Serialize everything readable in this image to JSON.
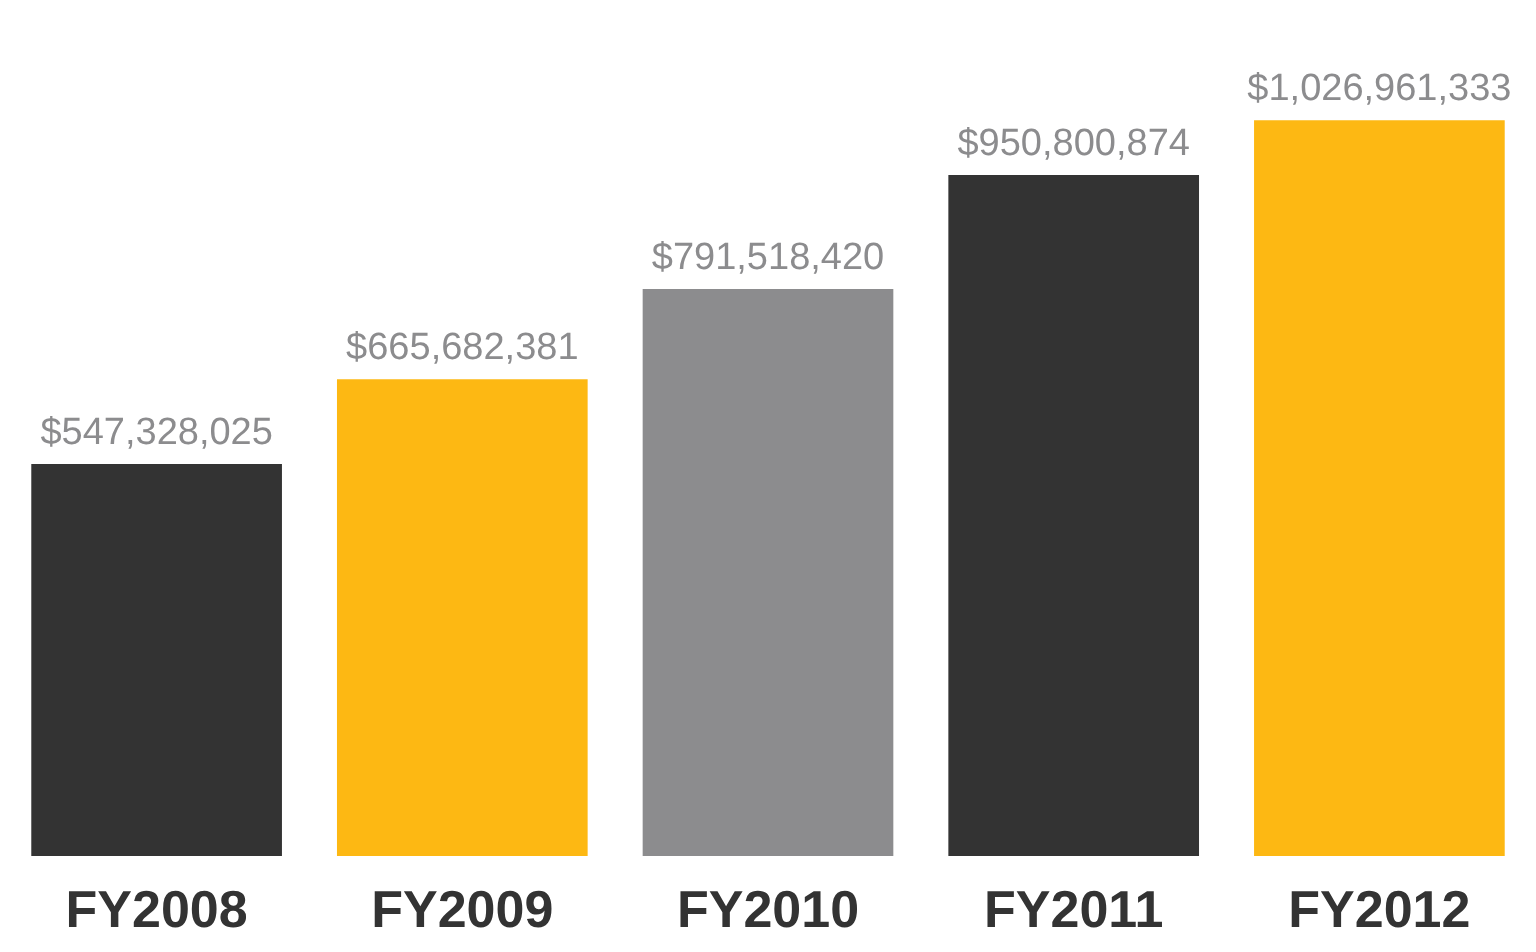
{
  "chart_data": {
    "type": "bar",
    "categories": [
      "FY2008",
      "FY2009",
      "FY2010",
      "FY2011",
      "FY2012"
    ],
    "values": [
      547328025,
      665682381,
      791518420,
      950800874,
      1026961333
    ],
    "colors": [
      "#333333",
      "#fdb813",
      "#8c8c8e",
      "#333333",
      "#fdb813"
    ],
    "value_labels": [
      "$547,328,025",
      "$665,682,381",
      "$791,518,420",
      "$950,800,874",
      "$1,026,961,333"
    ],
    "grid": false
  }
}
